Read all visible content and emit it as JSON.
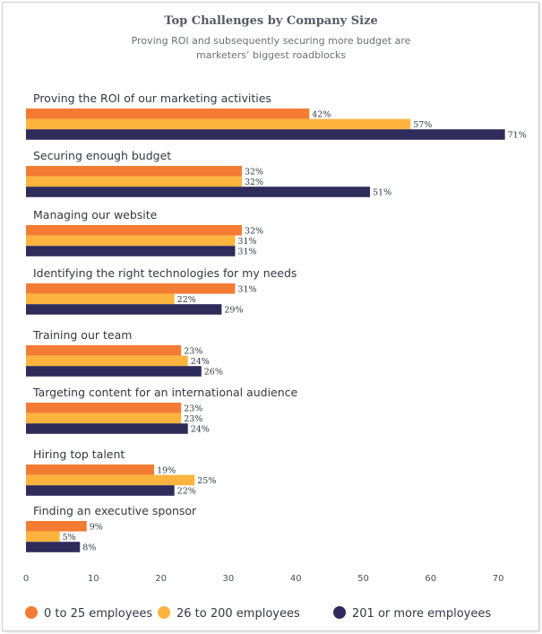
{
  "colors": {
    "series_0_25": "#f47b34",
    "series_26_200": "#fdb43f",
    "series_201_plus": "#2f2b5b"
  },
  "chart_data": {
    "type": "bar",
    "orientation": "horizontal",
    "title": "Top Challenges by Company Size",
    "subtitle": "Proving ROI and subsequently securing more budget are marketers’ biggest roadblocks",
    "xlabel": "",
    "ylabel": "",
    "xlim": [
      0,
      72
    ],
    "xticks": [
      0,
      10,
      20,
      30,
      40,
      50,
      60,
      70
    ],
    "grid": false,
    "legend_position": "bottom",
    "value_suffix": "%",
    "categories": [
      "Proving the ROI of our marketing activities",
      "Securing enough budget",
      "Managing our website",
      "Identifying the right technologies for my needs",
      "Training our team",
      "Targeting content for an international audience",
      "Hiring top talent",
      "Finding an executive sponsor"
    ],
    "series": [
      {
        "name": "0 to 25 employees",
        "color": "#f47b34",
        "values": [
          42,
          32,
          32,
          31,
          23,
          23,
          19,
          9
        ]
      },
      {
        "name": "26 to 200 employees",
        "color": "#fdb43f",
        "values": [
          57,
          32,
          31,
          22,
          24,
          23,
          25,
          5
        ]
      },
      {
        "name": "201 or more employees",
        "color": "#2f2b5b",
        "values": [
          71,
          51,
          31,
          29,
          26,
          24,
          22,
          8
        ]
      }
    ]
  }
}
